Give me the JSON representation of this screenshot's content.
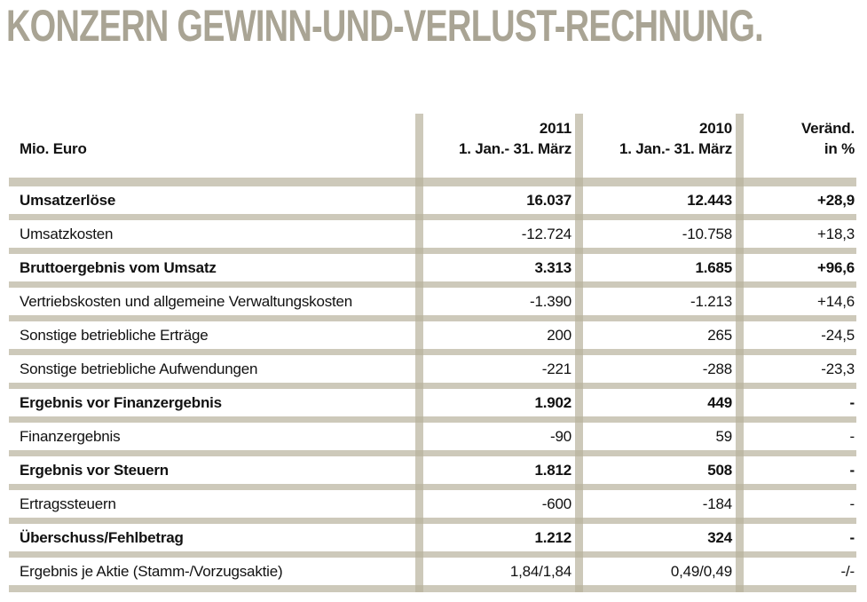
{
  "page_title": "KONZERN GEWINN-UND-VERLUST-RECHNUNG.",
  "colors": {
    "title": "#A9A494",
    "separator": "rgba(184,178,156,0.7)",
    "text": "#111111"
  },
  "table": {
    "unit_label": "Mio. Euro",
    "columns": [
      {
        "year": "2011",
        "period": "1. Jan.- 31. März"
      },
      {
        "year": "2010",
        "period": "1. Jan.- 31. März"
      },
      {
        "year": "Veränd.",
        "period": "in %"
      }
    ],
    "rows": [
      {
        "label": "Umsatzerlöse",
        "v2011": "16.037",
        "v2010": "12.443",
        "change": "+28,9",
        "bold": true
      },
      {
        "label": "Umsatzkosten",
        "v2011": "-12.724",
        "v2010": "-10.758",
        "change": "+18,3",
        "bold": false
      },
      {
        "label": "Bruttoergebnis vom Umsatz",
        "v2011": "3.313",
        "v2010": "1.685",
        "change": "+96,6",
        "bold": true
      },
      {
        "label": "Vertriebskosten und allgemeine Verwaltungskosten",
        "v2011": "-1.390",
        "v2010": "-1.213",
        "change": "+14,6",
        "bold": false
      },
      {
        "label": "Sonstige betriebliche Erträge",
        "v2011": "200",
        "v2010": "265",
        "change": "-24,5",
        "bold": false
      },
      {
        "label": "Sonstige betriebliche Aufwendungen",
        "v2011": "-221",
        "v2010": "-288",
        "change": "-23,3",
        "bold": false
      },
      {
        "label": "Ergebnis vor Finanzergebnis",
        "v2011": "1.902",
        "v2010": "449",
        "change": "-",
        "bold": true
      },
      {
        "label": "Finanzergebnis",
        "v2011": "-90",
        "v2010": "59",
        "change": "-",
        "bold": false
      },
      {
        "label": "Ergebnis vor Steuern",
        "v2011": "1.812",
        "v2010": "508",
        "change": "-",
        "bold": true
      },
      {
        "label": "Ertragssteuern",
        "v2011": "-600",
        "v2010": "-184",
        "change": "-",
        "bold": false
      },
      {
        "label": "Überschuss/Fehlbetrag",
        "v2011": "1.212",
        "v2010": "324",
        "change": "-",
        "bold": true
      },
      {
        "label": "Ergebnis je Aktie (Stamm-/Vorzugsaktie)",
        "v2011": "1,84/1,84",
        "v2010": "0,49/0,49",
        "change": "-/-",
        "bold": false
      }
    ]
  }
}
